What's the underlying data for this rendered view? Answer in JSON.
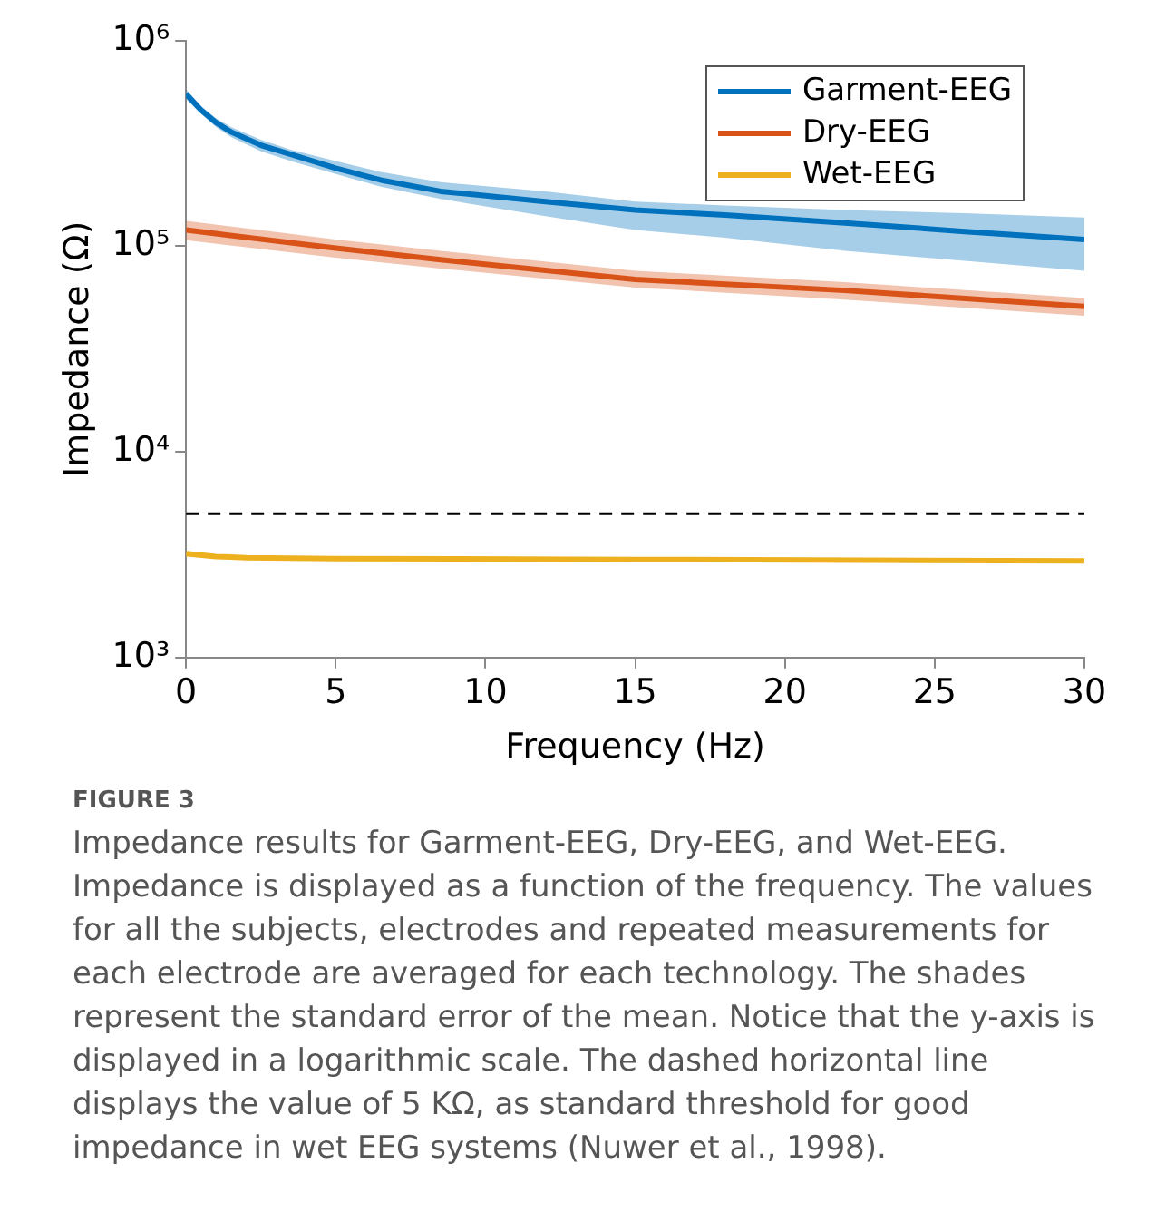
{
  "chart_data": {
    "type": "line",
    "xlabel": "Frequency (Hz)",
    "ylabel": "Impedance (Ω)",
    "log": "y",
    "grid": false,
    "legend": "top right",
    "marker": "none",
    "line_style": "solid",
    "xlim": [
      0,
      30
    ],
    "xticks": [
      0,
      5,
      10,
      15,
      20,
      25,
      30
    ],
    "ylim": [
      1000,
      1000000
    ],
    "yticks": [
      {
        "value": 1000,
        "label": "10³"
      },
      {
        "value": 10000,
        "label": "10⁴"
      },
      {
        "value": 100000,
        "label": "10⁵"
      },
      {
        "value": 1000000,
        "label": "10⁶"
      }
    ],
    "series": [
      {
        "name": "Garment-EEG",
        "color": "#0072bd",
        "x": [
          0,
          0.5,
          1,
          1.5,
          2.5,
          3.5,
          5,
          6.5,
          8.5,
          12,
          15,
          18,
          22,
          26,
          30
        ],
        "values": [
          550000,
          460000,
          400000,
          360000,
          310000,
          280000,
          240000,
          210000,
          185000,
          165000,
          150000,
          142000,
          130000,
          118000,
          108000
        ],
        "lower": [
          520000,
          440000,
          380000,
          340000,
          290000,
          260000,
          225000,
          195000,
          170000,
          140000,
          120000,
          110000,
          95000,
          85000,
          76000
        ],
        "upper": [
          580000,
          480000,
          420000,
          380000,
          330000,
          295000,
          260000,
          230000,
          205000,
          185000,
          165000,
          158000,
          150000,
          145000,
          138000
        ]
      },
      {
        "name": "Dry-EEG",
        "color": "#d95319",
        "x": [
          0,
          5,
          8.5,
          15,
          22,
          30
        ],
        "values": [
          120000,
          98000,
          86000,
          69000,
          61000,
          51000
        ],
        "lower": [
          107000,
          88000,
          78000,
          63000,
          55000,
          46000
        ],
        "upper": [
          133000,
          108000,
          95000,
          76000,
          67000,
          56000
        ]
      },
      {
        "name": "Wet-EEG",
        "color": "#edb120",
        "x": [
          0,
          1,
          2,
          5,
          15,
          30
        ],
        "values": [
          3200,
          3100,
          3060,
          3030,
          3000,
          2950
        ],
        "lower": [
          3100,
          3020,
          2990,
          2960,
          2930,
          2880
        ],
        "upper": [
          3300,
          3180,
          3130,
          3100,
          3070,
          3020
        ]
      }
    ],
    "ref_lines": [
      {
        "axis": "y",
        "value": 5000,
        "color": "#000000",
        "line_style": "dashed"
      }
    ],
    "annotations": [
      "FIGURE 3",
      "Impedance results for Garment-EEG, Dry-EEG, and Wet-EEG. Impedance is displayed as a function of the frequency. The values for all the subjects, electrodes and repeated measurements for each electrode are averaged for each technology. The shades represent the standard error of the mean. Notice that the y-axis is displayed in a logarithmic scale. The dashed horizontal line displays the value of 5 KΩ, as standard threshold for good impedance in wet EEG systems (Nuwer et al., 1998)."
    ]
  }
}
